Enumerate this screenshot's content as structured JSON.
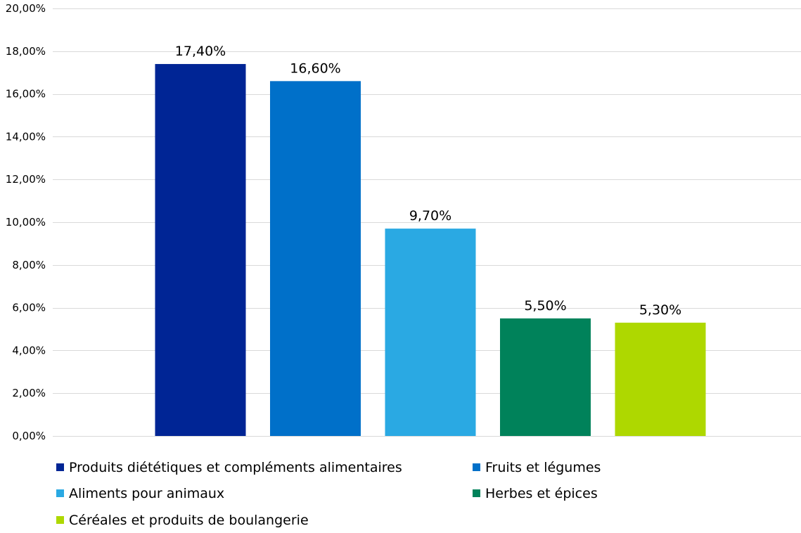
{
  "chart_data": {
    "type": "bar",
    "categories": [
      "Produits diététiques et compléments alimentaires",
      "Fruits et légumes",
      "Aliments pour animaux",
      "Herbes et épices",
      "Céréales et produits de boulangerie"
    ],
    "values": [
      17.4,
      16.6,
      9.7,
      5.5,
      5.3
    ],
    "value_labels": [
      "17,40%",
      "16,60%",
      "9,70%",
      "5,50%",
      "5,30%"
    ],
    "colors": [
      "#002595",
      "#0070C9",
      "#2AA9E3",
      "#00825A",
      "#AED800"
    ],
    "ylim": [
      0,
      20
    ],
    "y_ticks": [
      0,
      2,
      4,
      6,
      8,
      10,
      12,
      14,
      16,
      18,
      20
    ],
    "y_tick_labels": [
      "0,00%",
      "2,00%",
      "4,00%",
      "6,00%",
      "8,00%",
      "10,00%",
      "12,00%",
      "14,00%",
      "16,00%",
      "18,00%",
      "20,00%"
    ],
    "grid": true,
    "legend_position": "bottom",
    "legend": [
      "Produits diététiques et compléments alimentaires",
      "Fruits et légumes",
      "Aliments pour animaux",
      "Herbes et épices",
      "Céréales et produits de boulangerie"
    ],
    "title": "",
    "xlabel": "",
    "ylabel": ""
  }
}
